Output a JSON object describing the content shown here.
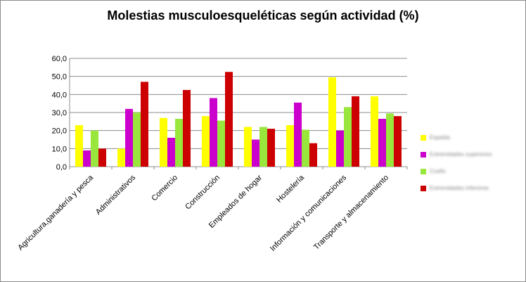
{
  "chart_data": {
    "type": "bar",
    "title": "Molestias musculoesqueléticas según actividad (%)",
    "xlabel": "",
    "ylabel": "",
    "ylim": [
      0,
      60
    ],
    "yticks": [
      "0,0",
      "10,0",
      "20,0",
      "30,0",
      "40,0",
      "50,0",
      "60,0"
    ],
    "grid": true,
    "legend_position": "right",
    "categories": [
      "Agricultura,ganadería y pesca",
      "Administrativos",
      "Comercio",
      "Construcción",
      "Empleados de hogar",
      "Hostelería",
      "Información y comunicaciones",
      "Transporte y almacenamiento"
    ],
    "series": [
      {
        "name": "Espalda",
        "color": "#ffff00",
        "values": [
          23,
          10,
          27,
          28,
          22,
          23,
          49.5,
          39
        ]
      },
      {
        "name": "Extremidades superiores",
        "color": "#cc00cc",
        "values": [
          9,
          32,
          16,
          38,
          15,
          35.5,
          20,
          26.5
        ]
      },
      {
        "name": "Cuello",
        "color": "#99e63c",
        "values": [
          20,
          30,
          26.5,
          25.5,
          22,
          20.5,
          33,
          29.5
        ]
      },
      {
        "name": "Extremidades inferiores",
        "color": "#cc0000",
        "values": [
          10,
          47,
          42.5,
          52.5,
          21,
          13,
          39,
          28
        ]
      }
    ]
  }
}
